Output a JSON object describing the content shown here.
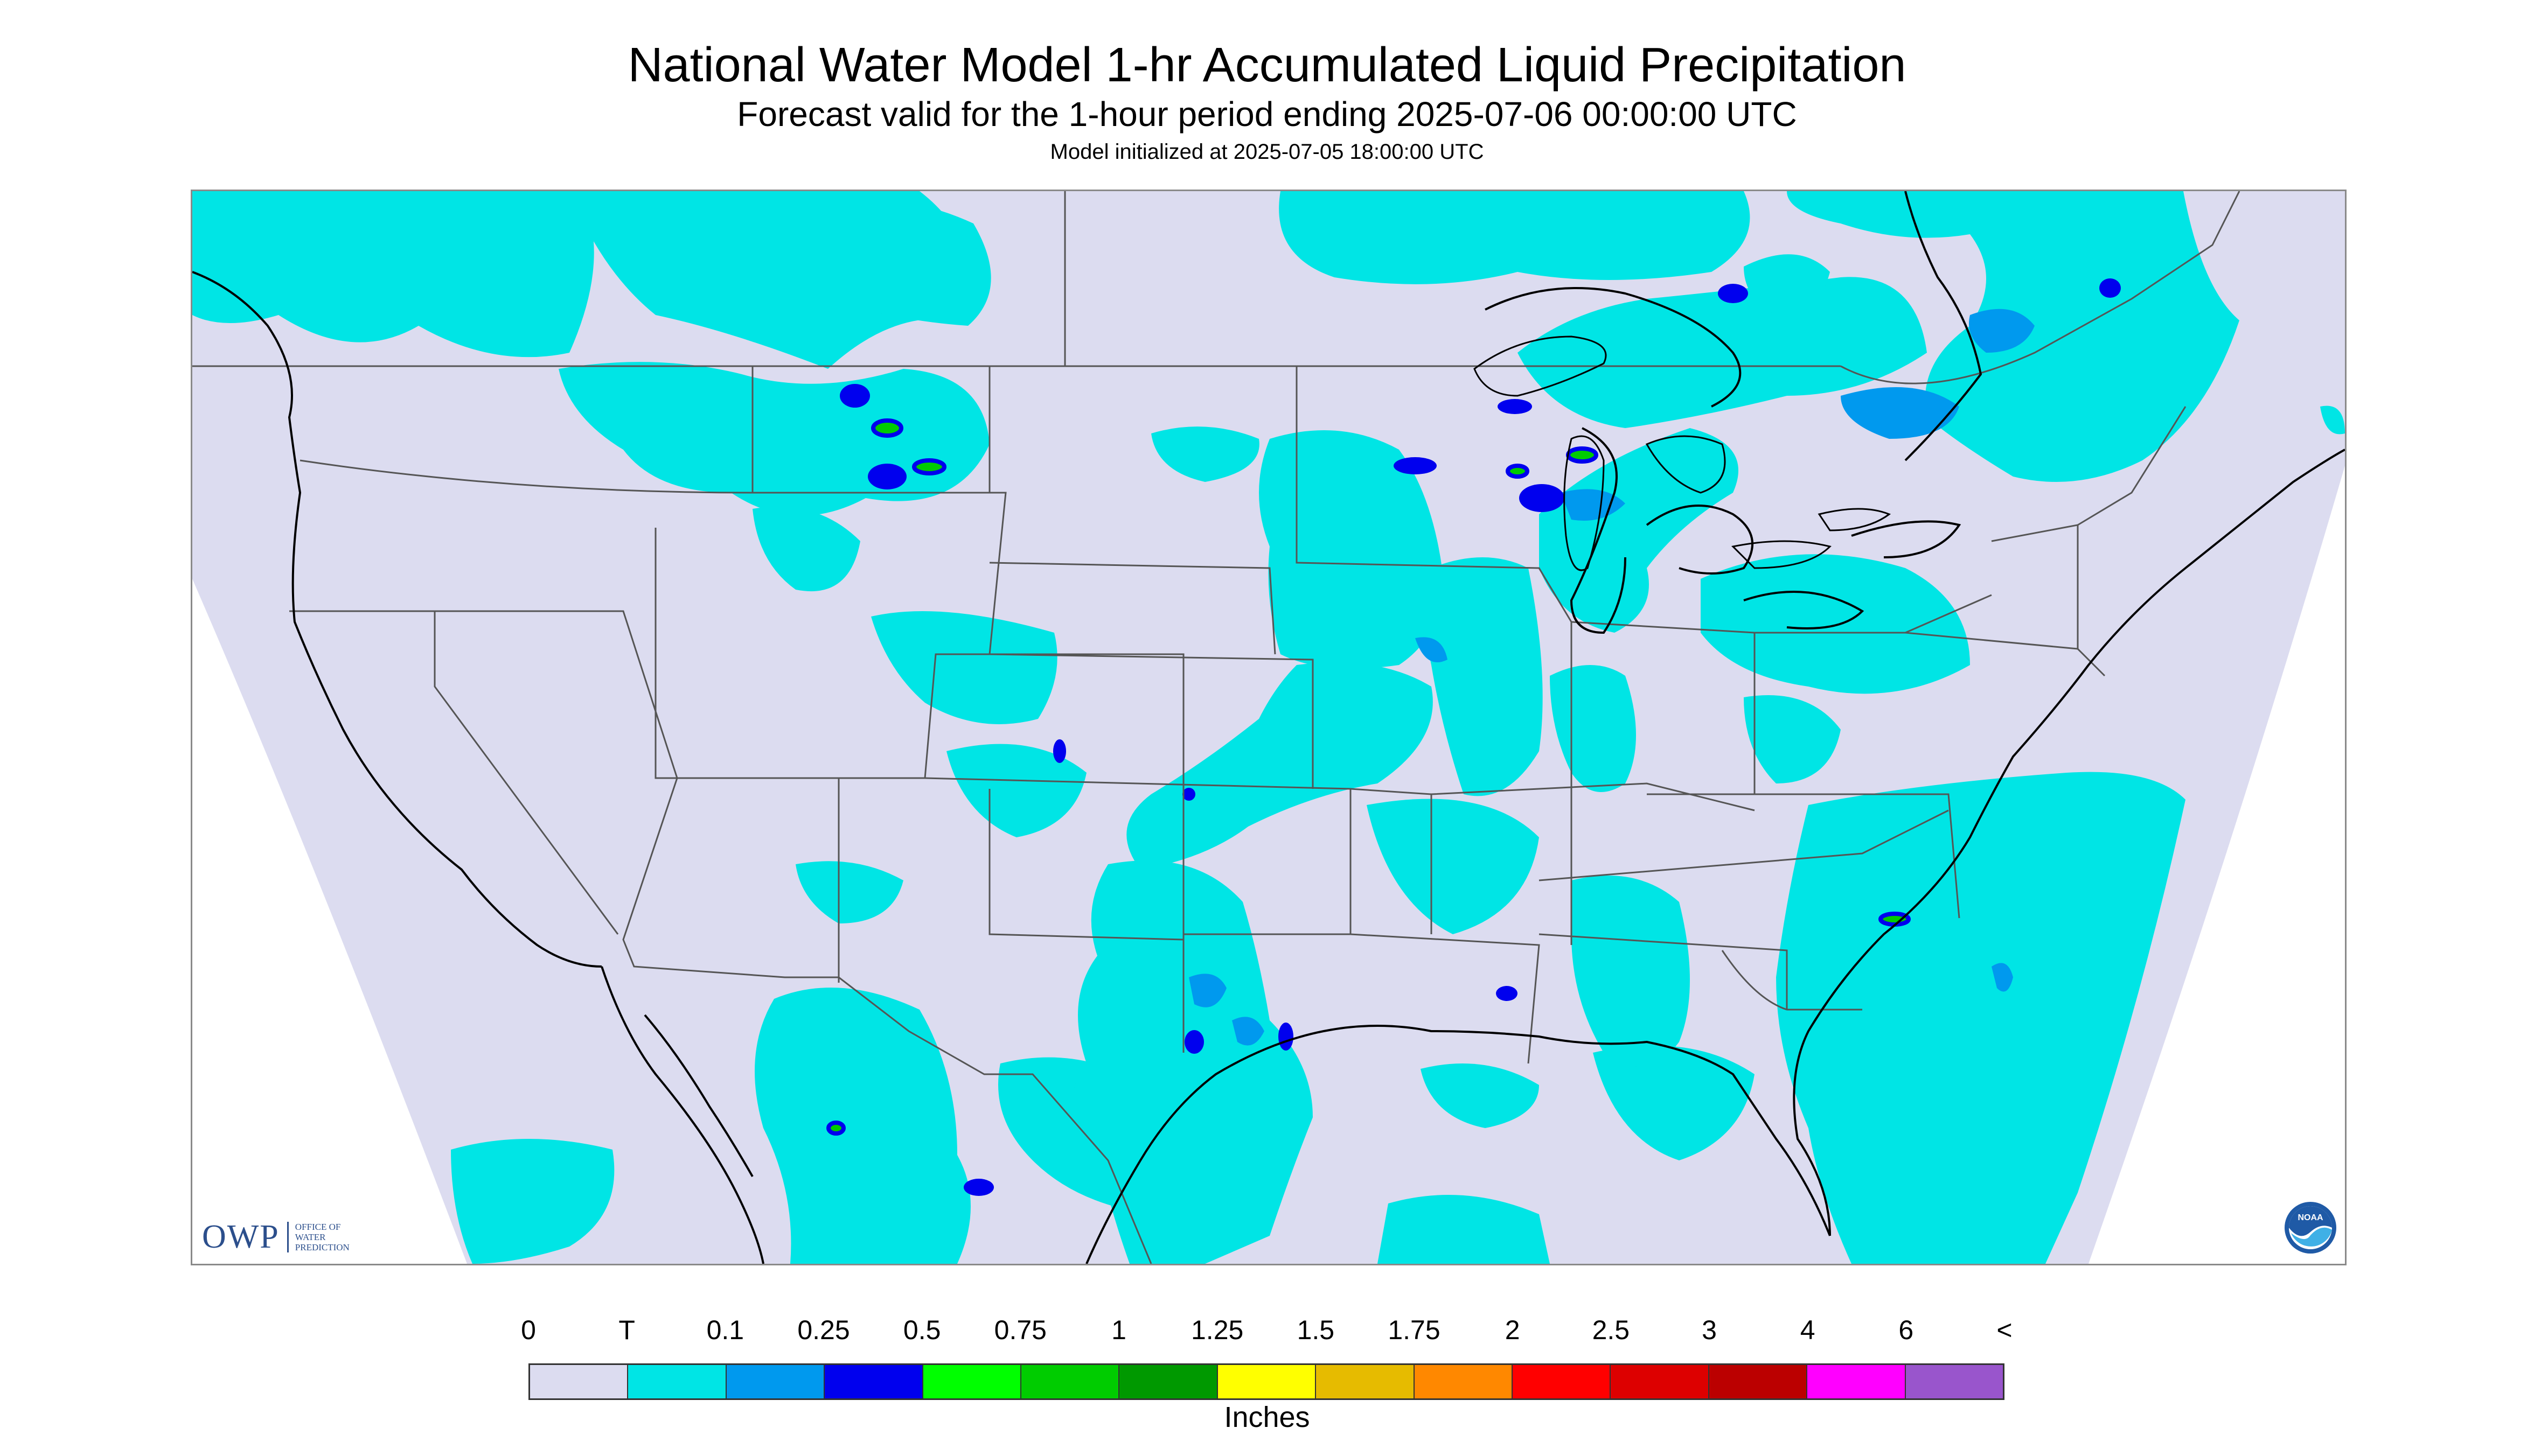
{
  "header": {
    "title": "National Water Model 1-hr Accumulated Liquid Precipitation",
    "subtitle": "Forecast valid for the 1-hour period ending 2025-07-06 00:00:00 UTC",
    "init": "Model initialized at 2025-07-05 18:00:00 UTC"
  },
  "logos": {
    "owp_text": "OWP",
    "owp_line1": "OFFICE OF",
    "owp_line2": "WATER",
    "owp_line3": "PREDICTION",
    "noaa_text": "NOAA"
  },
  "colors": {
    "background": "#dcdcf0",
    "trace": "#00e5e5",
    "light_blue": "#0099ee",
    "blue": "#0000ee",
    "green": "#00cc00",
    "boundary": "#555555",
    "coast": "#000000"
  },
  "legend": {
    "labels": [
      "0",
      "T",
      "0.1",
      "0.25",
      "0.5",
      "0.75",
      "1",
      "1.25",
      "1.5",
      "1.75",
      "2",
      "2.5",
      "3",
      "4",
      "6",
      "<"
    ],
    "colors": [
      "#dcdcf0",
      "#00e5e5",
      "#0099ee",
      "#0000ee",
      "#00ff00",
      "#00cc00",
      "#009900",
      "#ffff00",
      "#e6bb00",
      "#ff8800",
      "#ff0000",
      "#dd0000",
      "#bb0000",
      "#ff00ff",
      "#9955cc"
    ],
    "units": "Inches"
  }
}
